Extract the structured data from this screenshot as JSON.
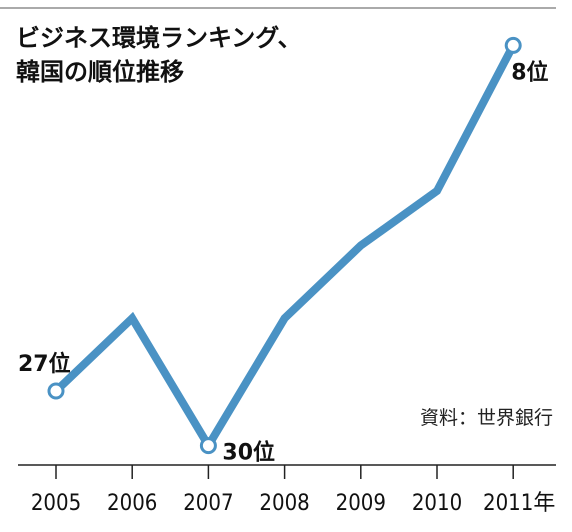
{
  "chart_data": {
    "type": "line",
    "title_lines": [
      "ビジネス環境ランキング、",
      "韓国の順位推移"
    ],
    "categories": [
      "2005",
      "2006",
      "2007",
      "2008",
      "2009",
      "2010",
      "2011年"
    ],
    "series": [
      {
        "values": [
          27,
          23,
          30,
          23,
          19,
          16,
          8
        ]
      }
    ],
    "ylim": [
      32,
      6
    ],
    "y_inverted": true,
    "data_labels": [
      {
        "index": 0,
        "text": "27位"
      },
      {
        "index": 2,
        "text": "30位"
      },
      {
        "index": 6,
        "text": "8位"
      }
    ],
    "hollow_marker_indices": [
      0,
      2,
      6
    ],
    "source": "資料：世界銀行",
    "grid": false,
    "line_color": "#4a92c4",
    "axis_color": "#222222"
  }
}
